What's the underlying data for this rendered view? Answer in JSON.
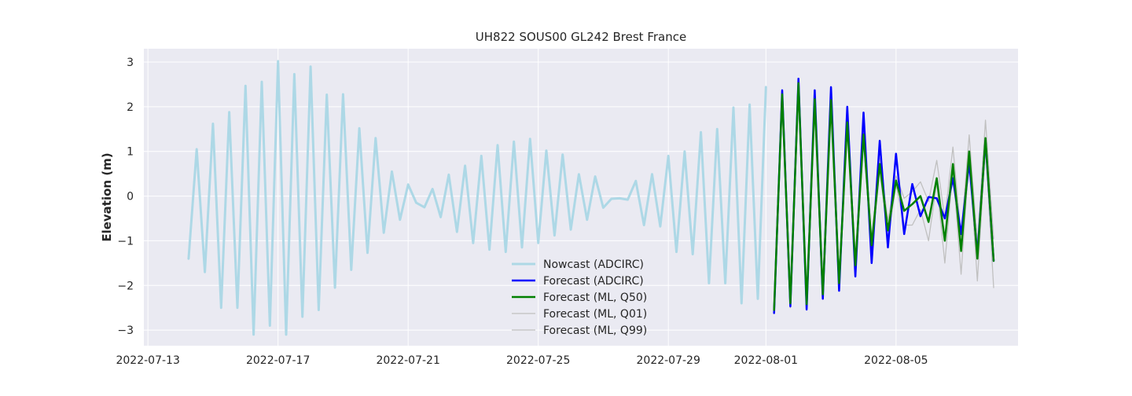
{
  "chart_data": {
    "type": "line",
    "title": "UH822 SOUS00 GL242 Brest France",
    "xlabel": "",
    "ylabel": "Elevation (m)",
    "ylim": [
      -3.35,
      3.3
    ],
    "xlim": [
      "2022-07-12T21:00",
      "2022-08-08T18:00"
    ],
    "grid": true,
    "legend_position": "lower center",
    "x_ticks": [
      "2022-07-13",
      "2022-07-17",
      "2022-07-21",
      "2022-07-25",
      "2022-07-29",
      "2022-08-01",
      "2022-08-05"
    ],
    "y_ticks": [
      -3,
      -2,
      -1,
      0,
      1,
      2,
      3
    ],
    "y_tick_labels": [
      "−3",
      "−2",
      "−1",
      "0",
      "1",
      "2",
      "3"
    ],
    "legend": [
      "Nowcast (ADCIRC)",
      "Forecast (ADCIRC)",
      "Forecast (ML, Q50)",
      "Forecast (ML, Q01)",
      "Forecast (ML, Q99)"
    ],
    "series": [
      {
        "name": "Nowcast (ADCIRC)",
        "color": "#add8e6",
        "points": [
          [
            "2022-07-14T06:00",
            -1.4
          ],
          [
            "2022-07-14T12:00",
            1.05
          ],
          [
            "2022-07-14T18:00",
            -1.7
          ],
          [
            "2022-07-15T00:00",
            1.62
          ],
          [
            "2022-07-15T06:00",
            -2.5
          ],
          [
            "2022-07-15T12:00",
            1.88
          ],
          [
            "2022-07-15T18:00",
            -2.5
          ],
          [
            "2022-07-16T00:00",
            2.47
          ],
          [
            "2022-07-16T06:00",
            -3.1
          ],
          [
            "2022-07-16T12:00",
            2.56
          ],
          [
            "2022-07-16T18:00",
            -2.9
          ],
          [
            "2022-07-17T00:00",
            3.02
          ],
          [
            "2022-07-17T06:00",
            -3.1
          ],
          [
            "2022-07-17T12:00",
            2.73
          ],
          [
            "2022-07-17T18:00",
            -2.7
          ],
          [
            "2022-07-18T00:00",
            2.9
          ],
          [
            "2022-07-18T06:00",
            -2.55
          ],
          [
            "2022-07-18T12:00",
            2.27
          ],
          [
            "2022-07-18T18:00",
            -2.05
          ],
          [
            "2022-07-19T00:00",
            2.28
          ],
          [
            "2022-07-19T06:00",
            -1.65
          ],
          [
            "2022-07-19T12:00",
            1.52
          ],
          [
            "2022-07-19T18:00",
            -1.27
          ],
          [
            "2022-07-20T00:00",
            1.3
          ],
          [
            "2022-07-20T06:00",
            -0.82
          ],
          [
            "2022-07-20T12:00",
            0.55
          ],
          [
            "2022-07-20T18:00",
            -0.53
          ],
          [
            "2022-07-21T00:00",
            0.26
          ],
          [
            "2022-07-21T06:00",
            -0.15
          ],
          [
            "2022-07-21T12:00",
            -0.25
          ],
          [
            "2022-07-21T18:00",
            0.16
          ],
          [
            "2022-07-22T00:00",
            -0.47
          ],
          [
            "2022-07-22T06:00",
            0.48
          ],
          [
            "2022-07-22T12:00",
            -0.8
          ],
          [
            "2022-07-22T18:00",
            0.68
          ],
          [
            "2022-07-23T00:00",
            -1.05
          ],
          [
            "2022-07-23T06:00",
            0.9
          ],
          [
            "2022-07-23T12:00",
            -1.2
          ],
          [
            "2022-07-23T18:00",
            1.14
          ],
          [
            "2022-07-24T00:00",
            -1.25
          ],
          [
            "2022-07-24T06:00",
            1.22
          ],
          [
            "2022-07-24T12:00",
            -1.15
          ],
          [
            "2022-07-24T18:00",
            1.28
          ],
          [
            "2022-07-25T00:00",
            -1.05
          ],
          [
            "2022-07-25T06:00",
            1.02
          ],
          [
            "2022-07-25T12:00",
            -0.88
          ],
          [
            "2022-07-25T18:00",
            0.93
          ],
          [
            "2022-07-26T00:00",
            -0.75
          ],
          [
            "2022-07-26T06:00",
            0.49
          ],
          [
            "2022-07-26T12:00",
            -0.53
          ],
          [
            "2022-07-26T18:00",
            0.44
          ],
          [
            "2022-07-27T00:00",
            -0.26
          ],
          [
            "2022-07-27T06:00",
            -0.06
          ],
          [
            "2022-07-27T12:00",
            -0.05
          ],
          [
            "2022-07-27T18:00",
            -0.08
          ],
          [
            "2022-07-28T00:00",
            0.34
          ],
          [
            "2022-07-28T06:00",
            -0.65
          ],
          [
            "2022-07-28T12:00",
            0.49
          ],
          [
            "2022-07-28T18:00",
            -0.68
          ],
          [
            "2022-07-29T00:00",
            0.9
          ],
          [
            "2022-07-29T06:00",
            -1.25
          ],
          [
            "2022-07-29T12:00",
            1.0
          ],
          [
            "2022-07-29T18:00",
            -1.3
          ],
          [
            "2022-07-30T00:00",
            1.43
          ],
          [
            "2022-07-30T06:00",
            -1.95
          ],
          [
            "2022-07-30T12:00",
            1.5
          ],
          [
            "2022-07-30T18:00",
            -1.95
          ],
          [
            "2022-07-31T00:00",
            1.98
          ],
          [
            "2022-07-31T06:00",
            -2.4
          ],
          [
            "2022-07-31T12:00",
            2.05
          ],
          [
            "2022-07-31T18:00",
            -2.3
          ],
          [
            "2022-08-01T00:00",
            2.44
          ]
        ]
      },
      {
        "name": "Forecast (ADCIRC)",
        "color": "#0000ff",
        "points": [
          [
            "2022-08-01T06:00",
            -2.62
          ],
          [
            "2022-08-01T12:00",
            2.37
          ],
          [
            "2022-08-01T18:00",
            -2.47
          ],
          [
            "2022-08-02T00:00",
            2.63
          ],
          [
            "2022-08-02T06:00",
            -2.54
          ],
          [
            "2022-08-02T12:00",
            2.37
          ],
          [
            "2022-08-02T18:00",
            -2.3
          ],
          [
            "2022-08-03T00:00",
            2.44
          ],
          [
            "2022-08-03T06:00",
            -2.12
          ],
          [
            "2022-08-03T12:00",
            2.0
          ],
          [
            "2022-08-03T18:00",
            -1.8
          ],
          [
            "2022-08-04T00:00",
            1.87
          ],
          [
            "2022-08-04T06:00",
            -1.5
          ],
          [
            "2022-08-04T12:00",
            1.24
          ],
          [
            "2022-08-04T18:00",
            -1.15
          ],
          [
            "2022-08-05T00:00",
            0.95
          ],
          [
            "2022-08-05T06:00",
            -0.85
          ],
          [
            "2022-08-05T12:00",
            0.27
          ],
          [
            "2022-08-05T18:00",
            -0.45
          ],
          [
            "2022-08-06T00:00",
            -0.02
          ],
          [
            "2022-08-06T06:00",
            -0.05
          ],
          [
            "2022-08-06T12:00",
            -0.5
          ],
          [
            "2022-08-06T18:00",
            0.4
          ],
          [
            "2022-08-07T00:00",
            -0.85
          ],
          [
            "2022-08-07T06:00",
            0.75
          ],
          [
            "2022-08-07T12:00",
            -1.3
          ],
          [
            "2022-08-07T18:00",
            1.25
          ],
          [
            "2022-08-08T00:00",
            -1.45
          ]
        ]
      },
      {
        "name": "Forecast (ML, Q50)",
        "color": "#008000",
        "points": [
          [
            "2022-08-01T06:00",
            -2.55
          ],
          [
            "2022-08-01T12:00",
            2.28
          ],
          [
            "2022-08-01T18:00",
            -2.4
          ],
          [
            "2022-08-02T00:00",
            2.53
          ],
          [
            "2022-08-02T06:00",
            -2.42
          ],
          [
            "2022-08-02T12:00",
            2.17
          ],
          [
            "2022-08-02T18:00",
            -2.2
          ],
          [
            "2022-08-03T00:00",
            2.15
          ],
          [
            "2022-08-03T06:00",
            -1.95
          ],
          [
            "2022-08-03T12:00",
            1.65
          ],
          [
            "2022-08-03T18:00",
            -1.55
          ],
          [
            "2022-08-04T00:00",
            1.38
          ],
          [
            "2022-08-04T06:00",
            -1.1
          ],
          [
            "2022-08-04T12:00",
            0.72
          ],
          [
            "2022-08-04T18:00",
            -0.77
          ],
          [
            "2022-08-05T00:00",
            0.35
          ],
          [
            "2022-08-05T06:00",
            -0.33
          ],
          [
            "2022-08-05T12:00",
            -0.18
          ],
          [
            "2022-08-05T18:00",
            0.0
          ],
          [
            "2022-08-06T00:00",
            -0.58
          ],
          [
            "2022-08-06T06:00",
            0.4
          ],
          [
            "2022-08-06T12:00",
            -1.0
          ],
          [
            "2022-08-06T18:00",
            0.72
          ],
          [
            "2022-08-07T00:00",
            -1.23
          ],
          [
            "2022-08-07T06:00",
            1.0
          ],
          [
            "2022-08-07T12:00",
            -1.4
          ],
          [
            "2022-08-07T18:00",
            1.3
          ],
          [
            "2022-08-08T00:00",
            -1.45
          ]
        ]
      },
      {
        "name": "Forecast (ML, Q01)",
        "color": "#c0c0c0",
        "points": [
          [
            "2022-08-01T06:00",
            -2.6
          ],
          [
            "2022-08-01T12:00",
            2.2
          ],
          [
            "2022-08-01T18:00",
            -2.5
          ],
          [
            "2022-08-02T00:00",
            2.45
          ],
          [
            "2022-08-02T06:00",
            -2.5
          ],
          [
            "2022-08-02T12:00",
            2.1
          ],
          [
            "2022-08-02T18:00",
            -2.3
          ],
          [
            "2022-08-03T00:00",
            2.05
          ],
          [
            "2022-08-03T06:00",
            -2.05
          ],
          [
            "2022-08-03T12:00",
            1.55
          ],
          [
            "2022-08-03T18:00",
            -1.7
          ],
          [
            "2022-08-04T00:00",
            1.25
          ],
          [
            "2022-08-04T06:00",
            -1.25
          ],
          [
            "2022-08-04T12:00",
            0.6
          ],
          [
            "2022-08-04T18:00",
            -0.95
          ],
          [
            "2022-08-05T00:00",
            0.25
          ],
          [
            "2022-08-05T06:00",
            -0.65
          ],
          [
            "2022-08-05T12:00",
            -0.65
          ],
          [
            "2022-08-05T18:00",
            -0.3
          ],
          [
            "2022-08-06T00:00",
            -1.0
          ],
          [
            "2022-08-06T06:00",
            0.3
          ],
          [
            "2022-08-06T12:00",
            -1.5
          ],
          [
            "2022-08-06T18:00",
            0.6
          ],
          [
            "2022-08-07T00:00",
            -1.75
          ],
          [
            "2022-08-07T06:00",
            0.9
          ],
          [
            "2022-08-07T12:00",
            -1.9
          ],
          [
            "2022-08-07T18:00",
            1.1
          ],
          [
            "2022-08-08T00:00",
            -2.05
          ]
        ]
      },
      {
        "name": "Forecast (ML, Q99)",
        "color": "#c0c0c0",
        "points": [
          [
            "2022-08-01T06:00",
            -2.45
          ],
          [
            "2022-08-01T12:00",
            2.32
          ],
          [
            "2022-08-01T18:00",
            -2.3
          ],
          [
            "2022-08-02T00:00",
            2.6
          ],
          [
            "2022-08-02T06:00",
            -2.35
          ],
          [
            "2022-08-02T12:00",
            2.25
          ],
          [
            "2022-08-02T18:00",
            -2.05
          ],
          [
            "2022-08-03T00:00",
            2.25
          ],
          [
            "2022-08-03T06:00",
            -1.8
          ],
          [
            "2022-08-03T12:00",
            1.75
          ],
          [
            "2022-08-03T18:00",
            -1.4
          ],
          [
            "2022-08-04T00:00",
            1.5
          ],
          [
            "2022-08-04T06:00",
            -0.95
          ],
          [
            "2022-08-04T12:00",
            0.85
          ],
          [
            "2022-08-04T18:00",
            -0.55
          ],
          [
            "2022-08-05T00:00",
            0.45
          ],
          [
            "2022-08-05T06:00",
            -0.05
          ],
          [
            "2022-08-05T12:00",
            0.1
          ],
          [
            "2022-08-05T18:00",
            0.32
          ],
          [
            "2022-08-06T00:00",
            -0.12
          ],
          [
            "2022-08-06T06:00",
            0.8
          ],
          [
            "2022-08-06T12:00",
            -0.5
          ],
          [
            "2022-08-06T18:00",
            1.1
          ],
          [
            "2022-08-07T00:00",
            -0.9
          ],
          [
            "2022-08-07T06:00",
            1.37
          ],
          [
            "2022-08-07T12:00",
            -1.05
          ],
          [
            "2022-08-07T18:00",
            1.7
          ],
          [
            "2022-08-08T00:00",
            -0.95
          ]
        ]
      }
    ]
  }
}
